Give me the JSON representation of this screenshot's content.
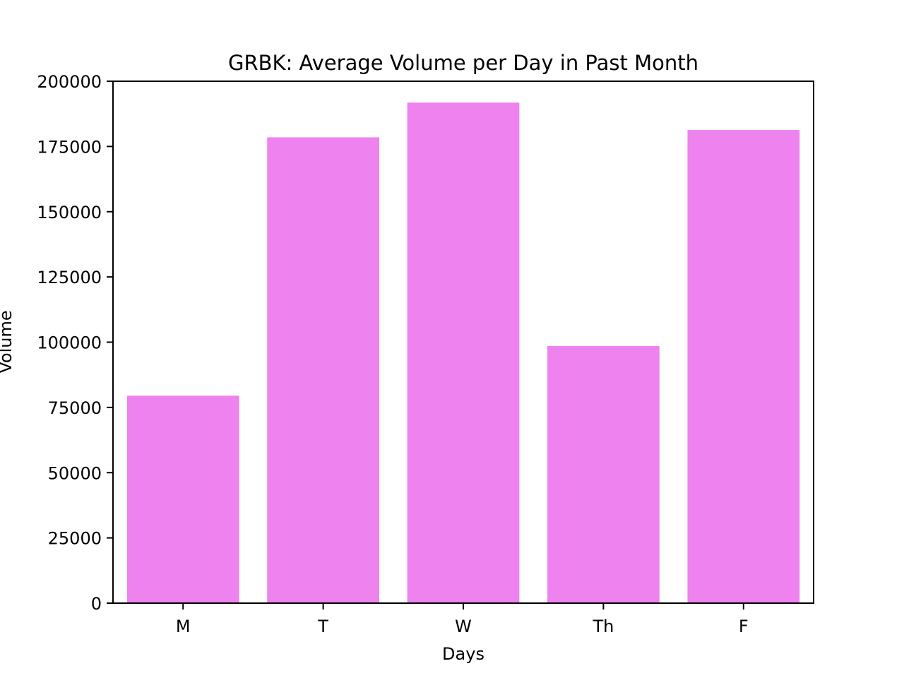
{
  "chart_data": {
    "type": "bar",
    "title": "GRBK: Average Volume per Day in Past Month",
    "xlabel": "Days",
    "ylabel": "Volume",
    "categories": [
      "M",
      "T",
      "W",
      "Th",
      "F"
    ],
    "values": [
      79500,
      178500,
      191800,
      98500,
      181300
    ],
    "ylim": [
      0,
      200000
    ],
    "yticks": [
      "0",
      "25000",
      "50000",
      "75000",
      "100000",
      "125000",
      "150000",
      "175000",
      "200000"
    ],
    "grid": false,
    "legend": "none",
    "colors": {
      "bar": "#ee82ee",
      "axis": "#000000",
      "background": "#ffffff"
    }
  }
}
